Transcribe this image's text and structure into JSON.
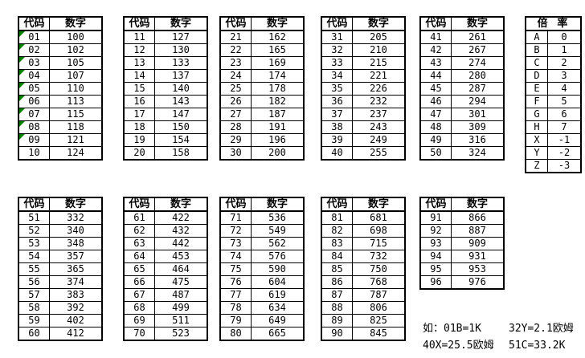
{
  "header": {
    "code": "代码",
    "value": "数字"
  },
  "colors": {
    "green_triangle": "#008000",
    "border": "#000000",
    "background": "#ffffff"
  },
  "code_tables": [
    {
      "name": "codes-01-10",
      "green_triangle_rows": [
        0,
        1,
        2,
        3,
        4,
        5,
        6,
        7,
        8
      ],
      "rows": [
        [
          "01",
          "100"
        ],
        [
          "02",
          "102"
        ],
        [
          "03",
          "105"
        ],
        [
          "04",
          "107"
        ],
        [
          "05",
          "110"
        ],
        [
          "06",
          "113"
        ],
        [
          "07",
          "115"
        ],
        [
          "08",
          "118"
        ],
        [
          "09",
          "121"
        ],
        [
          "10",
          "124"
        ]
      ]
    },
    {
      "name": "codes-11-20",
      "rows": [
        [
          "11",
          "127"
        ],
        [
          "12",
          "130"
        ],
        [
          "13",
          "133"
        ],
        [
          "14",
          "137"
        ],
        [
          "15",
          "140"
        ],
        [
          "16",
          "143"
        ],
        [
          "17",
          "147"
        ],
        [
          "18",
          "150"
        ],
        [
          "19",
          "154"
        ],
        [
          "20",
          "158"
        ]
      ]
    },
    {
      "name": "codes-21-30",
      "rows": [
        [
          "21",
          "162"
        ],
        [
          "22",
          "165"
        ],
        [
          "23",
          "169"
        ],
        [
          "24",
          "174"
        ],
        [
          "25",
          "178"
        ],
        [
          "26",
          "182"
        ],
        [
          "27",
          "187"
        ],
        [
          "28",
          "191"
        ],
        [
          "29",
          "196"
        ],
        [
          "30",
          "200"
        ]
      ]
    },
    {
      "name": "codes-31-40",
      "rows": [
        [
          "31",
          "205"
        ],
        [
          "32",
          "210"
        ],
        [
          "33",
          "215"
        ],
        [
          "34",
          "221"
        ],
        [
          "35",
          "226"
        ],
        [
          "36",
          "232"
        ],
        [
          "37",
          "237"
        ],
        [
          "38",
          "243"
        ],
        [
          "39",
          "249"
        ],
        [
          "40",
          "255"
        ]
      ]
    },
    {
      "name": "codes-41-50",
      "rows": [
        [
          "41",
          "261"
        ],
        [
          "42",
          "267"
        ],
        [
          "43",
          "274"
        ],
        [
          "44",
          "280"
        ],
        [
          "45",
          "287"
        ],
        [
          "46",
          "294"
        ],
        [
          "47",
          "301"
        ],
        [
          "48",
          "309"
        ],
        [
          "49",
          "316"
        ],
        [
          "50",
          "324"
        ]
      ]
    },
    {
      "name": "codes-51-60",
      "rows": [
        [
          "51",
          "332"
        ],
        [
          "52",
          "340"
        ],
        [
          "53",
          "348"
        ],
        [
          "54",
          "357"
        ],
        [
          "55",
          "365"
        ],
        [
          "56",
          "374"
        ],
        [
          "57",
          "383"
        ],
        [
          "58",
          "392"
        ],
        [
          "59",
          "402"
        ],
        [
          "60",
          "412"
        ]
      ]
    },
    {
      "name": "codes-61-70",
      "rows": [
        [
          "61",
          "422"
        ],
        [
          "62",
          "432"
        ],
        [
          "63",
          "442"
        ],
        [
          "64",
          "453"
        ],
        [
          "65",
          "464"
        ],
        [
          "66",
          "475"
        ],
        [
          "67",
          "487"
        ],
        [
          "68",
          "499"
        ],
        [
          "69",
          "511"
        ],
        [
          "70",
          "523"
        ]
      ]
    },
    {
      "name": "codes-71-80",
      "rows": [
        [
          "71",
          "536"
        ],
        [
          "72",
          "549"
        ],
        [
          "73",
          "562"
        ],
        [
          "74",
          "576"
        ],
        [
          "75",
          "590"
        ],
        [
          "76",
          "604"
        ],
        [
          "77",
          "619"
        ],
        [
          "78",
          "634"
        ],
        [
          "79",
          "649"
        ],
        [
          "80",
          "665"
        ]
      ]
    },
    {
      "name": "codes-81-90",
      "rows": [
        [
          "81",
          "681"
        ],
        [
          "82",
          "698"
        ],
        [
          "83",
          "715"
        ],
        [
          "84",
          "732"
        ],
        [
          "85",
          "750"
        ],
        [
          "86",
          "768"
        ],
        [
          "87",
          "787"
        ],
        [
          "88",
          "806"
        ],
        [
          "89",
          "825"
        ],
        [
          "90",
          "845"
        ]
      ]
    },
    {
      "name": "codes-91-96",
      "rows": [
        [
          "91",
          "866"
        ],
        [
          "92",
          "887"
        ],
        [
          "93",
          "909"
        ],
        [
          "94",
          "931"
        ],
        [
          "95",
          "953"
        ],
        [
          "96",
          "976"
        ]
      ]
    }
  ],
  "multiplier": {
    "title": "倍 率",
    "rows": [
      [
        "A",
        "0"
      ],
      [
        "B",
        "1"
      ],
      [
        "C",
        "2"
      ],
      [
        "D",
        "3"
      ],
      [
        "E",
        "4"
      ],
      [
        "F",
        "5"
      ],
      [
        "G",
        "6"
      ],
      [
        "H",
        "7"
      ],
      [
        "X",
        "-1"
      ],
      [
        "Y",
        "-2"
      ],
      [
        "Z",
        "-3"
      ]
    ]
  },
  "notes": {
    "rows": [
      [
        "如：01B=1K",
        "32Y=2.1欧姆"
      ],
      [
        "40X=25.5欧姆",
        "51C=33.2K"
      ]
    ]
  }
}
